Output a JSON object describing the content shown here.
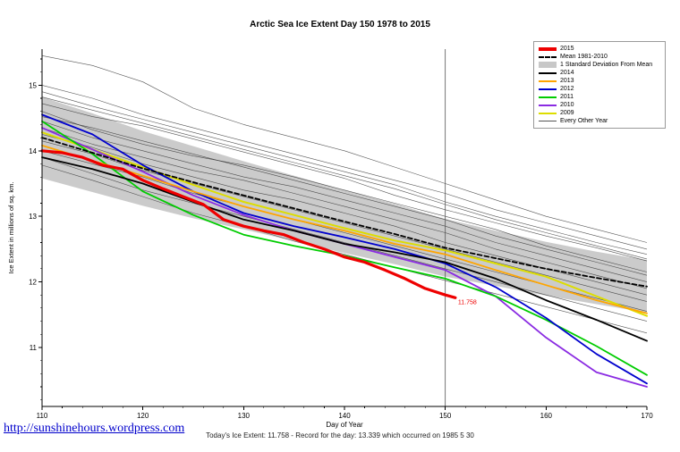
{
  "title": "Arctic Sea Ice Extent Day 150 1978 to 2015",
  "link": "http://sunshinehours.wordpress.com",
  "footer": "Today's Ice Extent: 11.758  - Record for the day: 13.339 which occurred on 1985 5 30",
  "annotation": {
    "text": "11.758",
    "day": 151,
    "value": 11.758,
    "color": "#ee0000"
  },
  "legend": {
    "items": [
      {
        "label": "2015",
        "color": "#ee0000",
        "style": "thick"
      },
      {
        "label": "Mean 1981-2010",
        "color": "#000000",
        "style": "dashed"
      },
      {
        "label": "1 Standard Deviation From Mean",
        "color": "#c8c8c8",
        "style": "block"
      },
      {
        "label": "2014",
        "color": "#000000",
        "style": "line"
      },
      {
        "label": "2013",
        "color": "#ffa500",
        "style": "line"
      },
      {
        "label": "2012",
        "color": "#0000cd",
        "style": "line"
      },
      {
        "label": "2011",
        "color": "#00cc00",
        "style": "line"
      },
      {
        "label": "2010",
        "color": "#8a2be2",
        "style": "line"
      },
      {
        "label": "2009",
        "color": "#dddd00",
        "style": "line"
      },
      {
        "label": "Every Other Year",
        "color": "#555555",
        "style": "thin"
      }
    ]
  },
  "chart_data": {
    "type": "line",
    "title": "Arctic Sea Ice Extent Day 150 1978 to 2015",
    "xlabel": "Day of Year",
    "ylabel": "Ice Extent in millions of sq. km.",
    "xlim": [
      110,
      170
    ],
    "ylim": [
      10.1,
      15.55
    ],
    "xticks": [
      110,
      120,
      130,
      140,
      150,
      160,
      170
    ],
    "yticks": [
      11,
      12,
      13,
      14,
      15
    ],
    "grid": false,
    "legend_position": "top-right",
    "vline": {
      "x": 150
    },
    "x": [
      110,
      115,
      120,
      125,
      130,
      135,
      140,
      145,
      150,
      155,
      160,
      165,
      170
    ],
    "band": {
      "name": "1 Standard Deviation From Mean",
      "color": "#c8c8c8",
      "upper": [
        14.82,
        14.57,
        14.3,
        14.07,
        13.84,
        13.62,
        13.4,
        13.19,
        12.96,
        12.78,
        12.61,
        12.46,
        12.33
      ],
      "lower": [
        13.58,
        13.37,
        13.16,
        12.97,
        12.8,
        12.62,
        12.44,
        12.27,
        12.08,
        11.94,
        11.79,
        11.66,
        11.53
      ]
    },
    "series": [
      {
        "name": "2015",
        "color": "#ee0000",
        "width": 3.2,
        "x": [
          110,
          112,
          114,
          116,
          118,
          120,
          122,
          124,
          126,
          128,
          130,
          132,
          134,
          136,
          138,
          140,
          142,
          144,
          146,
          148,
          150,
          151
        ],
        "values": [
          14.0,
          13.97,
          13.9,
          13.78,
          13.72,
          13.55,
          13.42,
          13.3,
          13.18,
          12.95,
          12.85,
          12.78,
          12.72,
          12.6,
          12.5,
          12.38,
          12.3,
          12.18,
          12.05,
          11.9,
          11.8,
          11.758
        ]
      },
      {
        "name": "Mean 1981-2010",
        "color": "#000000",
        "width": 1.8,
        "dash": "5,3",
        "values": [
          14.2,
          13.97,
          13.73,
          13.52,
          13.32,
          13.12,
          12.92,
          12.73,
          12.52,
          12.36,
          12.2,
          12.06,
          11.93
        ]
      },
      {
        "name": "2014",
        "color": "#000000",
        "width": 1.8,
        "values": [
          13.9,
          13.72,
          13.5,
          13.22,
          12.95,
          12.78,
          12.58,
          12.45,
          12.3,
          12.05,
          11.72,
          11.42,
          11.1
        ]
      },
      {
        "name": "2013",
        "color": "#ffa500",
        "width": 1.8,
        "values": [
          14.08,
          13.85,
          13.62,
          13.38,
          13.15,
          12.95,
          12.78,
          12.58,
          12.42,
          12.18,
          11.95,
          11.72,
          11.52
        ]
      },
      {
        "name": "2012",
        "color": "#0000cd",
        "width": 1.8,
        "values": [
          14.55,
          14.25,
          13.78,
          13.38,
          13.05,
          12.85,
          12.68,
          12.5,
          12.28,
          11.92,
          11.45,
          10.9,
          10.45
        ]
      },
      {
        "name": "2011",
        "color": "#00cc00",
        "width": 1.8,
        "values": [
          14.45,
          13.95,
          13.38,
          13.02,
          12.72,
          12.55,
          12.4,
          12.22,
          12.05,
          11.78,
          11.42,
          11.02,
          10.58
        ]
      },
      {
        "name": "2010",
        "color": "#8a2be2",
        "width": 1.8,
        "values": [
          14.35,
          14.02,
          13.68,
          13.32,
          13.02,
          12.78,
          12.58,
          12.38,
          12.18,
          11.78,
          11.15,
          10.62,
          10.4
        ]
      },
      {
        "name": "2009",
        "color": "#dddd00",
        "width": 2.0,
        "values": [
          14.28,
          14.02,
          13.75,
          13.48,
          13.22,
          13.02,
          12.82,
          12.63,
          12.48,
          12.28,
          12.08,
          11.78,
          11.48
        ]
      }
    ],
    "other_years": {
      "name": "Every Other Year",
      "color": "#383838",
      "width": 0.6,
      "series": [
        [
          15.45,
          15.3,
          15.05,
          14.65,
          14.4,
          14.2,
          14.0,
          13.75,
          13.5,
          13.25,
          13.0,
          12.8,
          12.6
        ],
        [
          15.0,
          14.8,
          14.55,
          14.35,
          14.15,
          13.95,
          13.75,
          13.55,
          13.35,
          13.1,
          12.9,
          12.7,
          12.5
        ],
        [
          14.9,
          14.68,
          14.48,
          14.28,
          14.08,
          13.88,
          13.68,
          13.48,
          13.22,
          13.0,
          12.8,
          12.6,
          12.42
        ],
        [
          14.72,
          14.52,
          14.38,
          14.18,
          13.98,
          13.78,
          13.58,
          13.32,
          13.1,
          12.9,
          12.7,
          12.52,
          12.32
        ],
        [
          14.6,
          14.32,
          14.1,
          13.92,
          13.78,
          13.6,
          13.4,
          13.2,
          13.0,
          12.8,
          12.55,
          12.35,
          12.15
        ],
        [
          14.52,
          14.35,
          14.15,
          13.95,
          13.75,
          13.55,
          13.35,
          13.15,
          12.95,
          12.7,
          12.5,
          12.3,
          12.1
        ],
        [
          14.45,
          14.2,
          14.0,
          13.8,
          13.6,
          13.45,
          13.25,
          13.05,
          12.85,
          12.6,
          12.4,
          12.2,
          12.0
        ],
        [
          14.35,
          14.1,
          13.9,
          13.7,
          13.55,
          13.35,
          13.15,
          12.95,
          12.75,
          12.5,
          12.3,
          12.1,
          11.9
        ],
        [
          14.25,
          14.05,
          13.8,
          13.6,
          13.4,
          13.25,
          13.05,
          12.85,
          12.6,
          12.4,
          12.2,
          12.0,
          11.8
        ],
        [
          14.15,
          13.95,
          13.7,
          13.5,
          13.3,
          13.1,
          12.9,
          12.7,
          12.5,
          12.3,
          12.1,
          11.9,
          11.7
        ],
        [
          14.0,
          13.8,
          13.6,
          13.35,
          13.15,
          12.95,
          12.75,
          12.55,
          12.35,
          12.15,
          11.95,
          11.75,
          11.55
        ],
        [
          13.9,
          13.65,
          13.4,
          13.2,
          13.0,
          12.8,
          12.6,
          12.4,
          12.2,
          12.0,
          11.8,
          11.6,
          11.4
        ],
        [
          13.78,
          13.55,
          13.3,
          13.05,
          12.85,
          12.62,
          12.42,
          12.22,
          12.02,
          11.82,
          11.62,
          11.42,
          11.22
        ],
        [
          14.82,
          14.62,
          14.42,
          14.22,
          14.02,
          13.82,
          13.62,
          13.42,
          13.18,
          12.95,
          12.75,
          12.55,
          12.35
        ]
      ]
    }
  }
}
